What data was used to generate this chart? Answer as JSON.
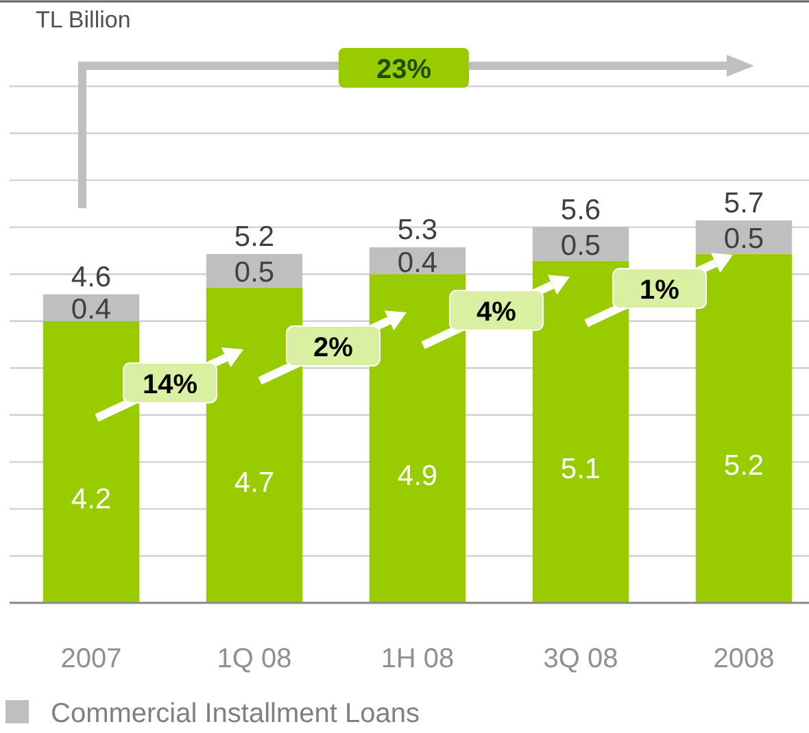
{
  "chart_data": {
    "type": "bar",
    "stacked": true,
    "ylabel": "TL Billion",
    "categories": [
      "2007",
      "1Q 08",
      "1H 08",
      "3Q 08",
      "2008"
    ],
    "series": [
      {
        "color": "#99cc00",
        "values": [
          4.2,
          4.7,
          4.9,
          5.1,
          5.2
        ]
      },
      {
        "name": "Commercial Installment Loans",
        "color": "#bfbfbf",
        "values": [
          0.4,
          0.5,
          0.4,
          0.5,
          0.5
        ]
      }
    ],
    "totals": [
      "4.6",
      "5.2",
      "5.3",
      "5.6",
      "5.7"
    ],
    "data_labels": true,
    "ylim": [
      0,
      7.7
    ],
    "yticks": [
      {
        "value": 0,
        "label": null
      },
      {
        "value": 0.7,
        "label": null
      },
      {
        "value": 1.4,
        "label": null
      },
      {
        "value": 2.1,
        "label": null
      },
      {
        "value": 2.8,
        "label": null
      },
      {
        "value": 3.5,
        "label": null
      },
      {
        "value": 4.2,
        "label": null
      },
      {
        "value": 4.9,
        "label": null
      },
      {
        "value": 5.6,
        "label": null
      },
      {
        "value": 6.3,
        "label": null
      },
      {
        "value": 7,
        "label": null
      },
      {
        "value": 7.7,
        "label": null
      }
    ],
    "grid": "y",
    "legend": "bottom left",
    "tick_labels": "x",
    "annotations": [
      "23%",
      "14%",
      "2%",
      "4%",
      "1%"
    ]
  }
}
